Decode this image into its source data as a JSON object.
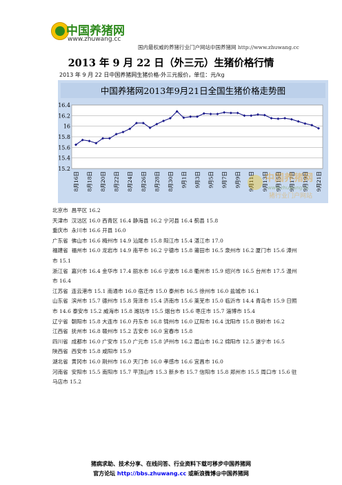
{
  "header": {
    "logo_text_main": "中国养猪网",
    "logo_url": "www.zhuwang.cc",
    "tagline": "国内最权威的养猪行业门户网站中国养猪网 http://www.zhuwang.cc"
  },
  "title": "2013 年 9 月 22 日（外三元）生猪价格行情",
  "subtitle": "2013 年 9 月 22 日中国养猪网生猪价格-外三元报价，单位：元/kg",
  "chart_data": {
    "type": "line",
    "title": "中国养猪网2013年9月21日全国生猪价格走势图",
    "categories": [
      "8月16日",
      "8月17日",
      "8月18日",
      "8月19日",
      "8月20日",
      "8月21日",
      "8月22日",
      "8月23日",
      "8月24日",
      "8月25日",
      "8月26日",
      "8月27日",
      "8月28日",
      "8月29日",
      "8月30日",
      "8月31日",
      "9月1日",
      "9月2日",
      "9月3日",
      "9月4日",
      "9月5日",
      "9月6日",
      "9月7日",
      "9月8日",
      "9月9日",
      "9月10日",
      "9月11日",
      "9月12日",
      "9月13日",
      "9月14日",
      "9月15日",
      "9月16日",
      "9月17日",
      "9月18日",
      "9月19日",
      "9月20日",
      "9月21日"
    ],
    "tick_labels": [
      "8月16日",
      "8月18日",
      "8月20日",
      "8月22日",
      "8月24日",
      "8月26日",
      "8月28日",
      "8月30日",
      "9月1日",
      "9月3日",
      "9月5日",
      "9月7日",
      "9月9日",
      "9月11日",
      "9月13日",
      "9月15日",
      "9月17日",
      "9月19日",
      "9月21日"
    ],
    "values": [
      15.65,
      15.74,
      15.72,
      15.68,
      15.77,
      15.77,
      15.85,
      15.89,
      15.95,
      16.06,
      16.06,
      15.97,
      16.04,
      16.1,
      16.15,
      16.28,
      16.16,
      16.18,
      16.18,
      16.24,
      16.23,
      16.23,
      16.26,
      16.25,
      16.25,
      16.2,
      16.2,
      16.22,
      16.21,
      16.15,
      16.14,
      16.15,
      16.13,
      16.09,
      16.05,
      16.02,
      15.96
    ],
    "ylim": [
      15.2,
      16.4
    ],
    "yticks": [
      15.2,
      15.4,
      15.6,
      15.8,
      16.0,
      16.2,
      16.4
    ],
    "ytick_labels": [
      "15.2",
      "15.4",
      "15.6",
      "15.8",
      "16",
      "16.2",
      "16.4"
    ],
    "line_color": "#1a1a8a",
    "background": "#ffffff",
    "title_bg": "#c9daf0",
    "grid": "horizontal"
  },
  "watermark": {
    "text": "中国养猪网",
    "sub": "猪行业门户网站",
    "url": "www.zhuwang.cc"
  },
  "provinces": [
    {
      "name": "北京市",
      "text": "昌平区 16.2"
    },
    {
      "name": "天津市",
      "text": "汉沽区 16.0  西青区 16.4  静海县 16.2  宁河县 16.4  蓟县 15.8"
    },
    {
      "name": "重庆市",
      "text": "永川市 16.6  开县 16.0"
    },
    {
      "name": "广东省",
      "text": "佛山市 16.6  梅州市 14.9  汕尾市 15.8  阳江市 15.4  湛江市 17.0"
    },
    {
      "name": "福建省",
      "text": "福州市 16.0  龙岩市 14.9  南平市 16.2  宁德市 15.8  莆田市 16.5  泉州市 16.2  厦门市 15.6  漳州市 15.1"
    },
    {
      "name": "浙江省",
      "text": "嘉兴市 16.4  金华市 17.4  丽水市 16.6  宁波市 16.8  衢州市 15.9  绍兴市 16.5  台州市 17.5  温州市 16.4"
    },
    {
      "name": "江苏省",
      "text": "连云港市 15.1  南通市 16.0  宿迁市 15.0  泰州市 16.5  徐州市 16.0  盐城市 16.1"
    },
    {
      "name": "山东省",
      "text": "滨州市 15.7  德州市 15.8  菏泽市 15.4  济南市 15.6  莱芜市 15.0  临沂市 14.4  青岛市 15.9  日照市 14.6  泰安市 15.2  威海市 15.8  潍坊市 15.5  烟台市 15.6  枣庄市 15.7  淄博市 15.4"
    },
    {
      "name": "辽宁省",
      "text": "朝阳市 15.8  大连市 16.0  丹东市 16.8  锦州市 16.0  辽阳市 16.4  沈阳市 15.8  铁岭市 16.2"
    },
    {
      "name": "江西省",
      "text": "抚州市 16.8  赣州市 15.2  吉安市 16.0  宜春市 15.8"
    },
    {
      "name": "四川省",
      "text": "成都市 16.0  广安市 15.0  广元市 15.8  泸州市 16.2  眉山市 16.2  绵阳市 12.5  遂宁市 16.5"
    },
    {
      "name": "陕西省",
      "text": "西安市 15.8  咸阳市 15.9"
    },
    {
      "name": "湖北省",
      "text": "黄冈市 16.0  荆州市 16.0  天门市 16.0  孝感市 16.6  宜昌市 16.0"
    },
    {
      "name": "河南省",
      "text": "安阳市 15.5  南阳市 15.7  平顶山市 15.3  新乡市 15.7  信阳市 15.8  郑州市 15.5  周口市 15.6  驻马店市 15.2"
    }
  ],
  "footer": {
    "line1": "猪病求助、技术分享、在线问答、行业资料下载可移步中国养猪网",
    "line2_prefix": "官方论坛 ",
    "line2_link": "http://bbs.zhuwang.cc",
    "line2_suffix": " 或新浪微博@中国养猪网"
  }
}
